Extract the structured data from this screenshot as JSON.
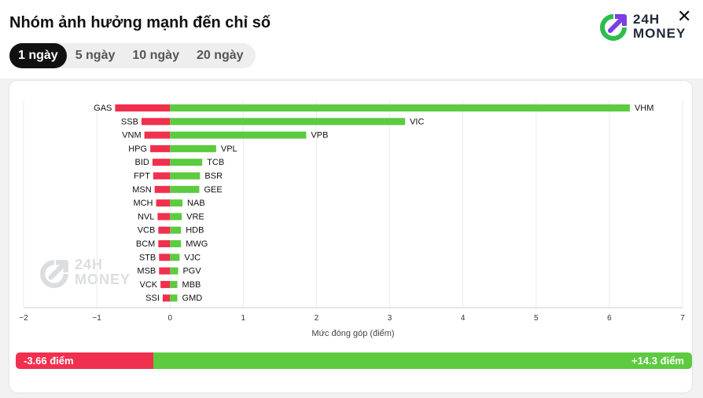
{
  "header": {
    "title": "Nhóm ảnh hưởng mạnh đến chỉ số"
  },
  "logo": {
    "line1": "24H",
    "line2": "MONEY"
  },
  "tabs": [
    {
      "label": "1 ngày",
      "active": true
    },
    {
      "label": "5 ngày",
      "active": false
    },
    {
      "label": "10 ngày",
      "active": false
    },
    {
      "label": "20 ngày",
      "active": false
    }
  ],
  "watermark": {
    "line1": "24H",
    "line2": "MONEY"
  },
  "colors": {
    "negative": "#f0304e",
    "positive": "#5ccb3f"
  },
  "totals": {
    "negative_label": "-3.66 điểm",
    "positive_label": "+14.3 điểm",
    "negative_value": -3.66,
    "positive_value": 14.3
  },
  "chart_data": {
    "type": "bar",
    "orientation": "horizontal-diverging",
    "xlabel": "Mức đóng góp (điểm)",
    "xlim": [
      -2,
      7
    ],
    "xticks": [
      "−2",
      "−1",
      "0",
      "1",
      "2",
      "3",
      "4",
      "5",
      "6",
      "7"
    ],
    "grid": true,
    "negative": {
      "categories": [
        "GAS",
        "SSB",
        "VNM",
        "HPG",
        "BID",
        "FPT",
        "MSN",
        "MCH",
        "NVL",
        "VCB",
        "BCM",
        "STB",
        "MSB",
        "VCK",
        "SSI"
      ],
      "values": [
        -0.75,
        -0.39,
        -0.35,
        -0.27,
        -0.24,
        -0.23,
        -0.21,
        -0.19,
        -0.17,
        -0.16,
        -0.16,
        -0.15,
        -0.15,
        -0.13,
        -0.1
      ]
    },
    "positive": {
      "categories": [
        "VHM",
        "VIC",
        "VPB",
        "VPL",
        "TCB",
        "BSR",
        "GEE",
        "NAB",
        "VRE",
        "HDB",
        "MWG",
        "VJC",
        "PGV",
        "MBB",
        "GMD"
      ],
      "values": [
        6.28,
        3.21,
        1.86,
        0.63,
        0.44,
        0.41,
        0.4,
        0.17,
        0.16,
        0.15,
        0.15,
        0.13,
        0.11,
        0.1,
        0.1
      ]
    }
  }
}
